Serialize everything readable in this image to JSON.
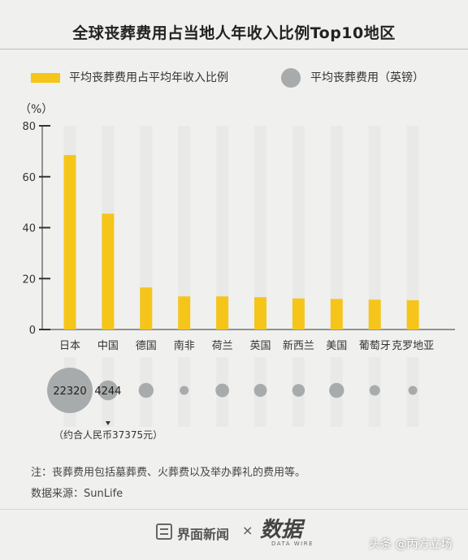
{
  "title": "全球丧葬费用占当地人年收入比例Top10地区",
  "legend": {
    "bar_label": "平均丧葬费用占平均年收入比例",
    "dot_label": "平均丧葬费用（英镑）"
  },
  "colors": {
    "bar": "#f5c519",
    "track": "#e9e9e8",
    "bubble": "#a8abab",
    "axis": "#333333"
  },
  "unit_label": "（%）",
  "bubble_note": "（约合人民币37375元）",
  "notes": {
    "note": "注：丧葬费用包括墓葬费、火葬费以及举办葬礼的费用等。",
    "source": "数据来源：SunLife"
  },
  "footer": {
    "brand_left": "界面新闻",
    "times": "×",
    "brand_right": "数据",
    "brand_right_sub": "DATA WIRE",
    "credit": "头条 @丙方立场"
  },
  "chart_data": {
    "type": "bar",
    "ylabel": "（%）",
    "ylim": [
      0,
      80
    ],
    "yticks": [
      0,
      20,
      40,
      60,
      80
    ],
    "categories": [
      "日本",
      "中国",
      "德国",
      "南非",
      "荷兰",
      "英国",
      "新西兰",
      "美国",
      "葡萄牙",
      "克罗地亚"
    ],
    "series": [
      {
        "name": "平均丧葬费用占平均年收入比例",
        "values": [
          68.5,
          45.5,
          16.5,
          13,
          13,
          12.7,
          12.2,
          12,
          11.7,
          11.5
        ]
      },
      {
        "name": "平均丧葬费用（英镑）",
        "values": [
          22320,
          4244,
          2400,
          500,
          2000,
          1800,
          1700,
          2400,
          1200,
          500
        ]
      }
    ],
    "bubble_value_labels": [
      "22320",
      "4244"
    ]
  }
}
